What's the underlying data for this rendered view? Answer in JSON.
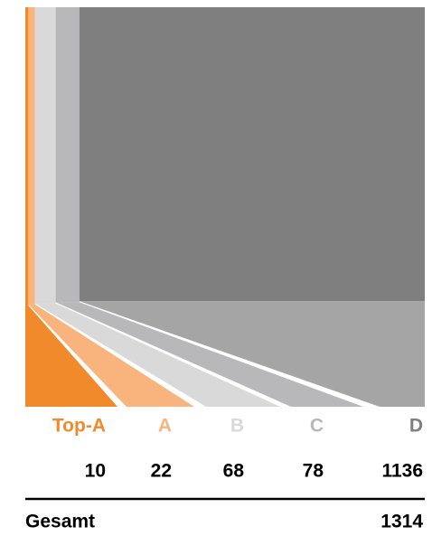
{
  "chart_data": {
    "type": "strip-funnel",
    "categories": [
      "Top-A",
      "A",
      "B",
      "C",
      "D"
    ],
    "values": [
      10,
      22,
      68,
      78,
      1136
    ],
    "colors": [
      "#f08a2a",
      "#f8b47c",
      "#d9d9d9",
      "#b8b8bb",
      "#7f7f7f"
    ],
    "total_label": "Gesamt",
    "total": 1314
  }
}
